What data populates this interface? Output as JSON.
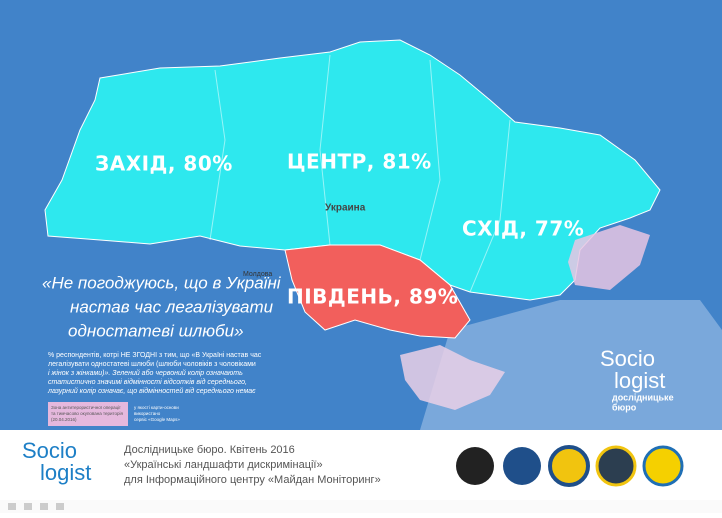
{
  "regions": {
    "west": "ЗАХІД, 80%",
    "center": "ЦЕНТР, 81%",
    "east": "СХІД, 77%",
    "south": "ПІВДЕНЬ, 89%"
  },
  "map_labels": {
    "country": "Украина",
    "moldova": "Молдова"
  },
  "quote": [
    "«Не погоджуюсь, що в Україні",
    "настав час легалізувати",
    "одностатеві шлюби»"
  ],
  "note": [
    "% респондентів, котрі НЕ ЗГОДНІ з тим, що «В Україні настав час",
    "легалізувати одностатеві шлюби (шлюби чоловіків з чоловіками",
    "і жінок з жінками)». Зелений або червоний колір означають",
    "статистично значимі відмінності відсотків від середнього,",
    "лазурний колір означає, що відмінностей від середнього немає"
  ],
  "legend": {
    "zone": [
      "Зона антитерористичної операції",
      "та тимчасово окупована територія",
      "(20.04.2016)"
    ],
    "source": [
      "у якості карти-основи",
      "використано",
      "сервіс «Google Maps»"
    ]
  },
  "logo": {
    "line1": "Socio",
    "line2": "logist",
    "sub1": "дослідницьке",
    "sub2": "бюро"
  },
  "footer": {
    "logo1": "Socio",
    "logo2": "logist",
    "lines": [
      "Дослідницьке бюро. Квітень 2016",
      "«Українські ландшафти дискримінації»",
      "для Інформаційного центру «Майдан Моніторинг»"
    ]
  }
}
